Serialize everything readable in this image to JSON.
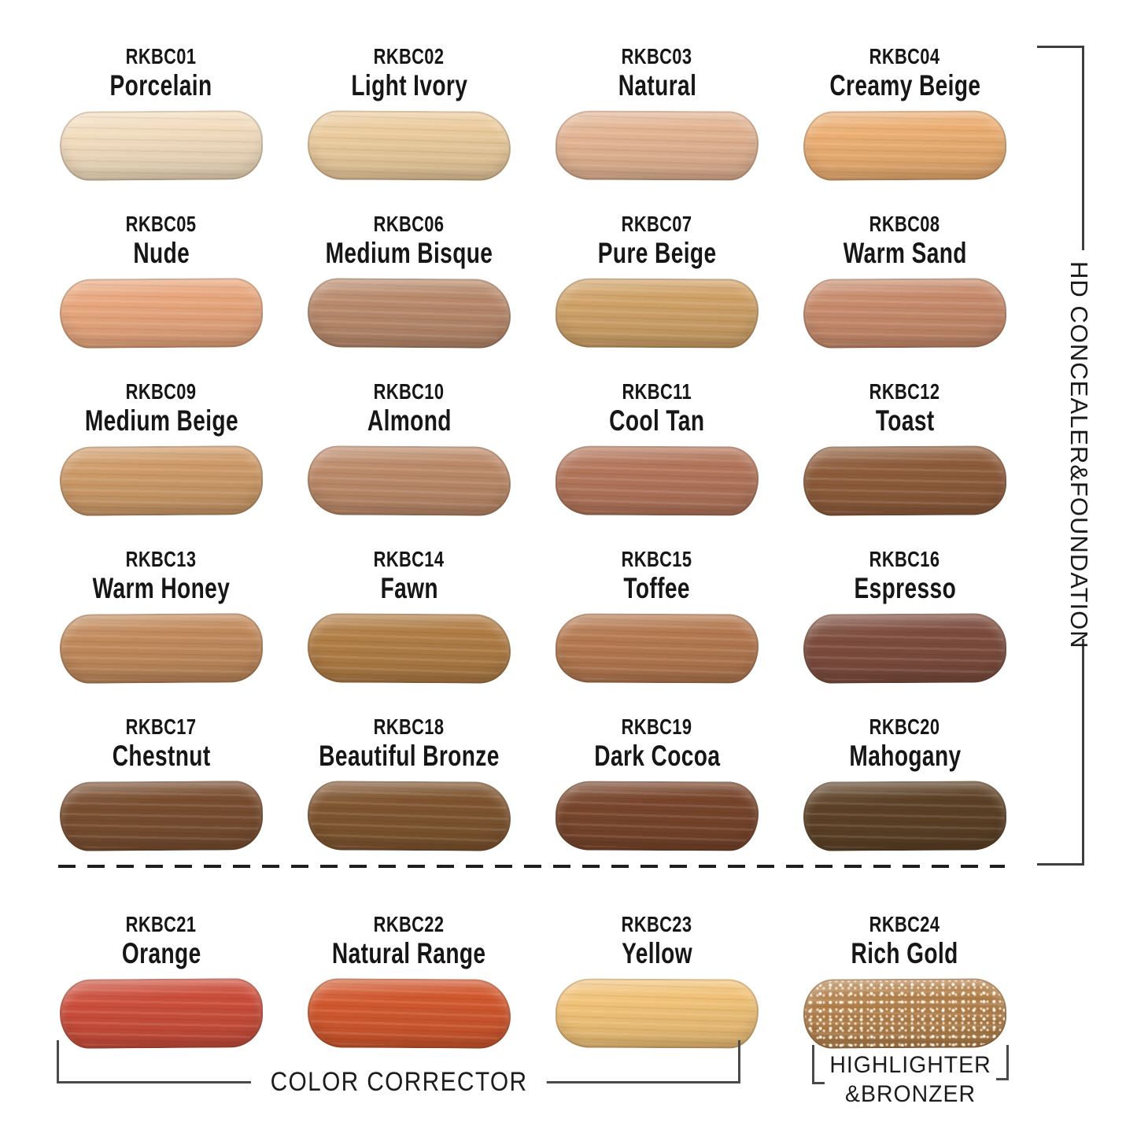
{
  "side_label": "HD CONCEALER&FOUNDATION",
  "bottom_labels": {
    "color_corrector": "COLOR CORRECTOR",
    "highlighter_line1": "HIGHLIGHTER",
    "highlighter_line2": "&BRONZER"
  },
  "shades": [
    {
      "code": "RKBC01",
      "name": "Porcelain",
      "color": "#F2DCBE"
    },
    {
      "code": "RKBC02",
      "name": "Light Ivory",
      "color": "#EBCB9D"
    },
    {
      "code": "RKBC03",
      "name": "Natural",
      "color": "#E2B493"
    },
    {
      "code": "RKBC04",
      "name": "Creamy Beige",
      "color": "#EBAE72"
    },
    {
      "code": "RKBC05",
      "name": "Nude",
      "color": "#E8A77E"
    },
    {
      "code": "RKBC06",
      "name": "Medium Bisque",
      "color": "#B98A6C"
    },
    {
      "code": "RKBC07",
      "name": "Pure Beige",
      "color": "#D0A268"
    },
    {
      "code": "RKBC08",
      "name": "Warm Sand",
      "color": "#C78B6C"
    },
    {
      "code": "RKBC09",
      "name": "Medium Beige",
      "color": "#CE9B69"
    },
    {
      "code": "RKBC10",
      "name": "Almond",
      "color": "#BC8A69"
    },
    {
      "code": "RKBC11",
      "name": "Cool Tan",
      "color": "#B3765B"
    },
    {
      "code": "RKBC12",
      "name": "Toast",
      "color": "#8E5C3B"
    },
    {
      "code": "RKBC13",
      "name": "Warm Honey",
      "color": "#C18A5C"
    },
    {
      "code": "RKBC14",
      "name": "Fawn",
      "color": "#B07D45"
    },
    {
      "code": "RKBC15",
      "name": "Toffee",
      "color": "#B47950"
    },
    {
      "code": "RKBC16",
      "name": "Espresso",
      "color": "#7D4D3E"
    },
    {
      "code": "RKBC17",
      "name": "Chestnut",
      "color": "#794E30"
    },
    {
      "code": "RKBC18",
      "name": "Beautiful Bronze",
      "color": "#7F5530"
    },
    {
      "code": "RKBC19",
      "name": "Dark Cocoa",
      "color": "#78452B"
    },
    {
      "code": "RKBC20",
      "name": "Mahogany",
      "color": "#5D4126"
    },
    {
      "code": "RKBC21",
      "name": "Orange",
      "color": "#CB4E3B"
    },
    {
      "code": "RKBC22",
      "name": "Natural Range",
      "color": "#D1582E"
    },
    {
      "code": "RKBC23",
      "name": "Yellow",
      "color": "#F1C278"
    },
    {
      "code": "RKBC24",
      "name": "Rich Gold",
      "color": "#B2804B",
      "sparkle": true
    }
  ]
}
